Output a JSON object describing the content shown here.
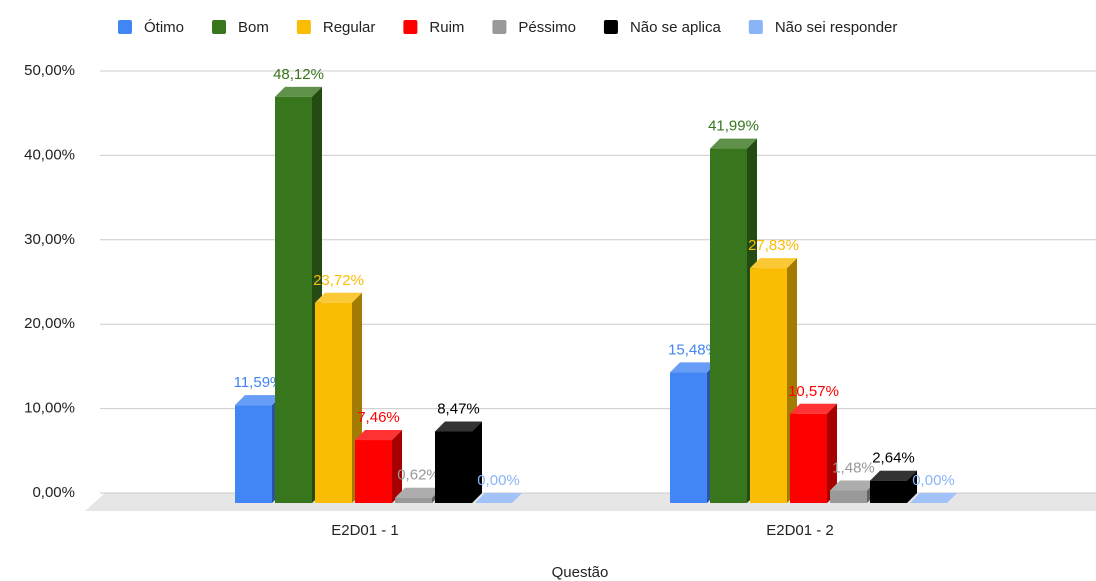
{
  "chart_data": {
    "type": "bar",
    "x_label": "Questão",
    "categories": [
      "E2D01 - 1",
      "E2D01 - 2"
    ],
    "series": [
      {
        "name": "Ótimo",
        "color": "#4285f4",
        "values": [
          11.59,
          15.48
        ],
        "value_labels": [
          "11,59%",
          "15,48%"
        ]
      },
      {
        "name": "Bom",
        "color": "#38761d",
        "values": [
          48.12,
          41.99
        ],
        "value_labels": [
          "48,12%",
          "41,99%"
        ]
      },
      {
        "name": "Regular",
        "color": "#fbbc04",
        "values": [
          23.72,
          27.83
        ],
        "value_labels": [
          "23,72%",
          "27,83%"
        ]
      },
      {
        "name": "Ruim",
        "color": "#ff0000",
        "values": [
          7.46,
          10.57
        ],
        "value_labels": [
          "7,46%",
          "10,57%"
        ]
      },
      {
        "name": "Péssimo",
        "color": "#999999",
        "values": [
          0.62,
          1.48
        ],
        "value_labels": [
          "0,62%",
          "1,48%"
        ]
      },
      {
        "name": "Não se aplica",
        "color": "#000000",
        "values": [
          8.47,
          2.64
        ],
        "value_labels": [
          "8,47%",
          "2,64%"
        ]
      },
      {
        "name": "Não sei responder",
        "color": "#8ab4f8",
        "values": [
          0,
          0
        ],
        "value_labels": [
          "0,00%",
          "0,00%"
        ]
      }
    ],
    "ylim": [
      0,
      50
    ],
    "yticks": [
      {
        "value": 0,
        "label": "0,00%"
      },
      {
        "value": 10,
        "label": "10,00%"
      },
      {
        "value": 20,
        "label": "20,00%"
      },
      {
        "value": 30,
        "label": "30,00%"
      },
      {
        "value": 40,
        "label": "40,00%"
      },
      {
        "value": 50,
        "label": "50,00%"
      }
    ],
    "grid": true,
    "legend": "top"
  }
}
